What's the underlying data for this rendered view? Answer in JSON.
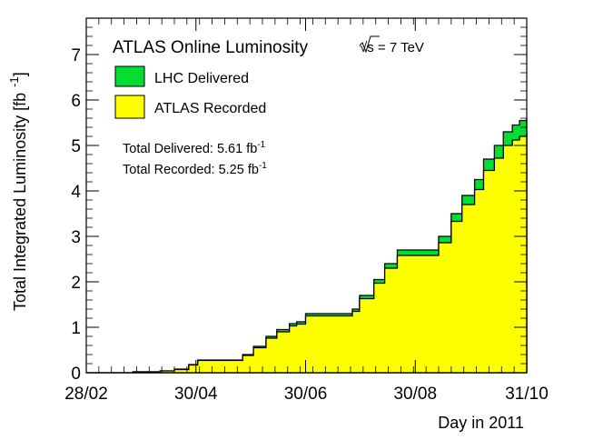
{
  "chart_data": {
    "type": "area",
    "title": "ATLAS Online Luminosity",
    "energy_label": "√s = 7 TeV",
    "xlabel": "Day in 2011",
    "ylabel": "Total Integrated Luminosity [fb",
    "ylabel_unit_exponent": "-1",
    "ylabel_close": "]",
    "x_ticklabels": [
      "28/02",
      "30/04",
      "30/06",
      "30/08",
      "31/10"
    ],
    "x_tick_dates": [
      "2011-02-28",
      "2011-04-30",
      "2011-06-30",
      "2011-08-30",
      "2011-10-31"
    ],
    "xlim": [
      "2011-02-28",
      "2011-10-31"
    ],
    "ylim": [
      0,
      7.8
    ],
    "y_ticklabels": [
      "0",
      "1",
      "2",
      "3",
      "4",
      "5",
      "6",
      "7"
    ],
    "legend_position": "top-left",
    "series": [
      {
        "name": "LHC Delivered",
        "color": "#00dd33",
        "x": [
          "2011-02-28",
          "2011-03-13",
          "2011-03-26",
          "2011-04-10",
          "2011-04-18",
          "2011-04-26",
          "2011-05-01",
          "2011-05-20",
          "2011-05-26",
          "2011-06-01",
          "2011-06-08",
          "2011-06-14",
          "2011-06-21",
          "2011-06-25",
          "2011-06-30",
          "2011-07-06",
          "2011-07-13",
          "2011-07-19",
          "2011-07-26",
          "2011-07-30",
          "2011-08-07",
          "2011-08-13",
          "2011-08-20",
          "2011-08-26",
          "2011-08-31",
          "2011-09-06",
          "2011-09-12",
          "2011-09-19",
          "2011-09-25",
          "2011-10-02",
          "2011-10-07",
          "2011-10-13",
          "2011-10-18",
          "2011-10-23",
          "2011-10-27",
          "2011-10-31"
        ],
        "y": [
          0,
          0,
          0.02,
          0.04,
          0.08,
          0.18,
          0.28,
          0.28,
          0.4,
          0.58,
          0.8,
          0.95,
          1.08,
          1.12,
          1.3,
          1.3,
          1.3,
          1.3,
          1.4,
          1.7,
          2.05,
          2.4,
          2.7,
          2.7,
          2.7,
          2.7,
          3.0,
          3.5,
          3.9,
          4.25,
          4.7,
          5.0,
          5.3,
          5.45,
          5.55,
          5.61
        ]
      },
      {
        "name": "ATLAS Recorded",
        "color": "#ffff00",
        "x": [
          "2011-02-28",
          "2011-03-13",
          "2011-03-26",
          "2011-04-10",
          "2011-04-18",
          "2011-04-26",
          "2011-05-01",
          "2011-05-20",
          "2011-05-26",
          "2011-06-01",
          "2011-06-08",
          "2011-06-14",
          "2011-06-21",
          "2011-06-25",
          "2011-06-30",
          "2011-07-06",
          "2011-07-13",
          "2011-07-19",
          "2011-07-26",
          "2011-07-30",
          "2011-08-07",
          "2011-08-13",
          "2011-08-20",
          "2011-08-26",
          "2011-08-31",
          "2011-09-06",
          "2011-09-12",
          "2011-09-19",
          "2011-09-25",
          "2011-10-02",
          "2011-10-07",
          "2011-10-13",
          "2011-10-18",
          "2011-10-23",
          "2011-10-27",
          "2011-10-31"
        ],
        "y": [
          0,
          0,
          0.02,
          0.04,
          0.07,
          0.17,
          0.27,
          0.27,
          0.38,
          0.55,
          0.76,
          0.9,
          1.03,
          1.07,
          1.25,
          1.25,
          1.25,
          1.25,
          1.35,
          1.63,
          1.97,
          2.3,
          2.58,
          2.58,
          2.58,
          2.58,
          2.86,
          3.33,
          3.7,
          4.03,
          4.45,
          4.72,
          5.0,
          5.12,
          5.2,
          5.25
        ]
      }
    ],
    "annotations": [
      {
        "label": "Total Delivered: 5.61 fb",
        "exponent": "-1"
      },
      {
        "label": "Total Recorded: 5.25 fb",
        "exponent": "-1"
      }
    ]
  }
}
